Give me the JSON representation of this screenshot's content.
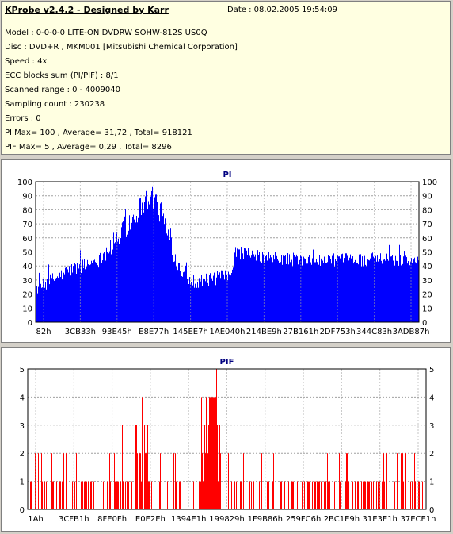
{
  "info": {
    "title": "KProbe v2.4.2 - Designed by Karr",
    "date": "Date : 08.02.2005 19:54:09",
    "lines": [
      "Model : 0-0-0-0 LITE-ON DVDRW SOHW-812S  US0Q",
      "Disc : DVD+R , MKM001 [Mitsubishi Chemical Corporation]",
      "Speed : 4x",
      "ECC blocks sum (PI/PIF) : 8/1",
      "Scanned range : 0 - 4009040",
      "Sampling count : 230238",
      "Errors : 0",
      "PI Max= 100 , Average= 31,72 , Total= 918121",
      "PIF Max= 5 , Average= 0,29 , Total= 8296"
    ]
  },
  "chart_data": [
    {
      "type": "bar",
      "title": "PI",
      "color": "#0000ff",
      "ylim": [
        0,
        100
      ],
      "yticks": [
        0,
        10,
        20,
        30,
        40,
        50,
        60,
        70,
        80,
        90,
        100
      ],
      "xticks": [
        "82h",
        "3CB33h",
        "93E45h",
        "E8E77h",
        "145EE7h",
        "1AE040h",
        "214BE9h",
        "27B161h",
        "2DF753h",
        "344C83h",
        "3ADB87h"
      ],
      "grid": true,
      "profile": [
        [
          0,
          24
        ],
        [
          0.02,
          26
        ],
        [
          0.04,
          30
        ],
        [
          0.06,
          33
        ],
        [
          0.08,
          36
        ],
        [
          0.1,
          38
        ],
        [
          0.12,
          40
        ],
        [
          0.14,
          42
        ],
        [
          0.165,
          44
        ],
        [
          0.18,
          50
        ],
        [
          0.2,
          56
        ],
        [
          0.22,
          63
        ],
        [
          0.24,
          70
        ],
        [
          0.26,
          77
        ],
        [
          0.28,
          84
        ],
        [
          0.29,
          88
        ],
        [
          0.3,
          90
        ],
        [
          0.31,
          88
        ],
        [
          0.32,
          82
        ],
        [
          0.33,
          74
        ],
        [
          0.34,
          66
        ],
        [
          0.35,
          57
        ],
        [
          0.36,
          48
        ],
        [
          0.37,
          42
        ],
        [
          0.38,
          38
        ],
        [
          0.39,
          34
        ],
        [
          0.4,
          30
        ],
        [
          0.42,
          29
        ],
        [
          0.44,
          30
        ],
        [
          0.46,
          30
        ],
        [
          0.48,
          32
        ],
        [
          0.5,
          32
        ],
        [
          0.515,
          33
        ],
        [
          0.52,
          48
        ],
        [
          0.54,
          50
        ],
        [
          0.56,
          47
        ],
        [
          0.6,
          46
        ],
        [
          0.7,
          44
        ],
        [
          0.8,
          44
        ],
        [
          0.9,
          45
        ],
        [
          1,
          44
        ]
      ]
    },
    {
      "type": "bar",
      "title": "PIF",
      "color": "#ff0000",
      "ylim": [
        0,
        5
      ],
      "yticks": [
        0,
        1,
        2,
        3,
        4,
        5
      ],
      "xticks": [
        "1Ah",
        "3CFB1h",
        "8FE0Fh",
        "E0E2Eh",
        "1394E1h",
        "199829h",
        "1F9B86h",
        "259FC6h",
        "2BC1E9h",
        "31E3E1h",
        "37ECE1h"
      ],
      "grid": true
    }
  ]
}
